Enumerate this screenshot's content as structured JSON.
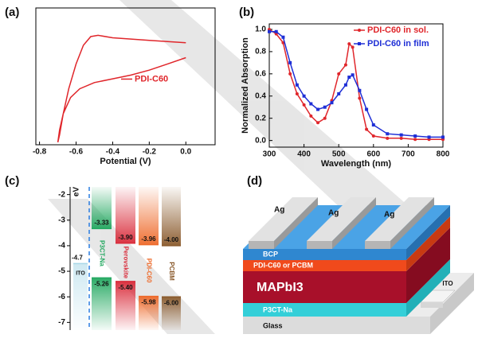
{
  "panels": [
    "(a)",
    "(b)",
    "(c)",
    "(d)"
  ],
  "chart_data": [
    {
      "type": "line",
      "xlabel": "Potential (V)",
      "xlim": [
        -0.82,
        0.16
      ],
      "ylim": [
        0,
        1.1
      ],
      "xticks": [
        -0.8,
        -0.6,
        -0.4,
        -0.2,
        {
          "value": 0,
          "label": "0.0"
        }
      ],
      "legend": "right",
      "x": [
        0.0,
        -0.1,
        -0.2,
        -0.3,
        -0.4,
        -0.48,
        -0.52,
        -0.56,
        -0.6,
        -0.64,
        -0.67,
        -0.69,
        -0.7,
        -0.69,
        -0.67,
        -0.63,
        -0.58,
        -0.5,
        -0.4,
        -0.3,
        -0.2,
        -0.1,
        0.0
      ],
      "series": [
        {
          "name": "PDI-C60",
          "color": "#e0262b",
          "values": [
            0.82,
            0.83,
            0.84,
            0.85,
            0.86,
            0.88,
            0.87,
            0.8,
            0.65,
            0.45,
            0.25,
            0.08,
            0.02,
            0.12,
            0.25,
            0.38,
            0.45,
            0.5,
            0.53,
            0.56,
            0.6,
            0.65,
            0.7
          ]
        }
      ]
    },
    {
      "type": "line",
      "xlabel": "Wavelength (nm)",
      "ylabel": "Normalized Absorption",
      "xlim": [
        300,
        800
      ],
      "ylim": [
        -0.06,
        1.05
      ],
      "xticks": [
        300,
        400,
        500,
        600,
        700,
        800
      ],
      "yticks": [
        {
          "value": 0,
          "label": "0.0"
        },
        0.2,
        0.4,
        0.6,
        0.8,
        {
          "value": 1,
          "label": "1.0"
        }
      ],
      "legend": "upper right",
      "x": [
        300,
        320,
        340,
        360,
        380,
        400,
        420,
        440,
        460,
        480,
        500,
        520,
        530,
        540,
        560,
        580,
        600,
        640,
        680,
        720,
        760,
        800
      ],
      "series": [
        {
          "name": "PDI-C60 in sol.",
          "color": "#e0262b",
          "marker": "circle",
          "values": [
            1.0,
            0.96,
            0.88,
            0.6,
            0.42,
            0.32,
            0.22,
            0.16,
            0.2,
            0.36,
            0.6,
            0.68,
            0.87,
            0.84,
            0.38,
            0.1,
            0.04,
            0.02,
            0.02,
            0.01,
            0.01,
            0.01
          ]
        },
        {
          "name": "PDI-C60 in film",
          "color": "#1f2fd6",
          "marker": "square",
          "values": [
            0.98,
            0.98,
            0.93,
            0.7,
            0.5,
            0.4,
            0.33,
            0.28,
            0.3,
            0.34,
            0.42,
            0.5,
            0.57,
            0.59,
            0.45,
            0.28,
            0.14,
            0.06,
            0.05,
            0.04,
            0.03,
            0.03
          ]
        }
      ]
    },
    {
      "type": "energy-level",
      "ylabel": "eV",
      "ylim": [
        -7.3,
        -1.7
      ],
      "yticks": [
        -2,
        -3,
        -4,
        -5,
        -6,
        -7
      ],
      "materials": [
        {
          "name": "ITO",
          "color": "#a9d8e8",
          "level": -4.7
        },
        {
          "name": "P3CT-Na",
          "color": "#23a860",
          "lumo": -3.33,
          "homo": -5.26
        },
        {
          "name": "Perovskite",
          "color": "#d92b3a",
          "lumo": {
            "value": -3.9,
            "label": "-3.90"
          },
          "homo": {
            "value": -5.4,
            "label": "-5.40"
          }
        },
        {
          "name": "PDI-C60",
          "color": "#ee6a2a",
          "lumo": -3.96,
          "homo": -5.98
        },
        {
          "name": "PCBM",
          "color": "#8a5a2c",
          "lumo": {
            "value": -4,
            "label": "-4.00"
          },
          "homo": {
            "value": -6,
            "label": "-6.00"
          }
        }
      ]
    }
  ],
  "device": {
    "electrodes": [
      "Ag",
      "Ag",
      "Ag"
    ],
    "layers": [
      "BCP",
      "PDI-C60 or PCBM",
      "MAPbI3",
      "P3CT-Na",
      "Glass"
    ],
    "contact": "ITO"
  }
}
